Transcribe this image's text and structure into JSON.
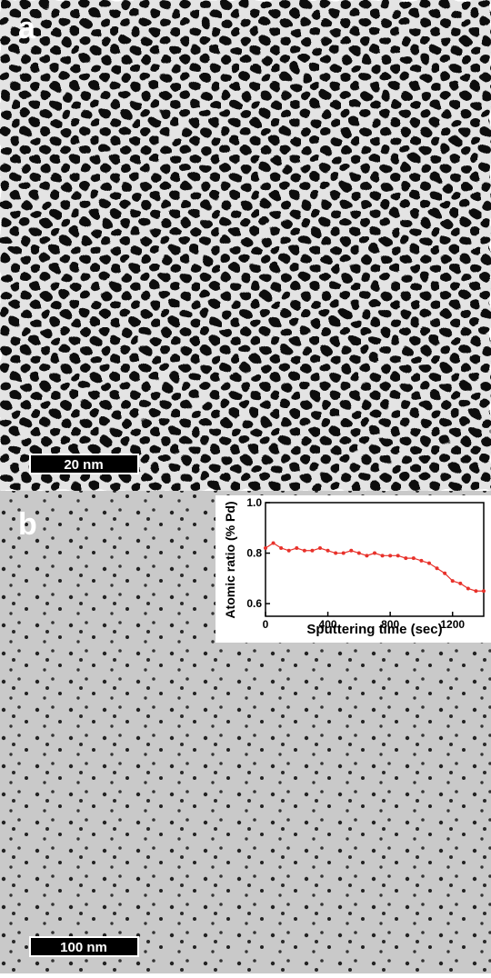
{
  "panels": [
    {
      "label": "a",
      "scale_bar": "20 nm"
    },
    {
      "label": "b",
      "scale_bar": "100 nm"
    }
  ],
  "chart_data": {
    "type": "line",
    "x_label": "Sputtering time (sec)",
    "y_label": "Atomic ratio (% Pd)",
    "x": [
      0,
      50,
      100,
      150,
      200,
      250,
      300,
      350,
      400,
      450,
      500,
      550,
      600,
      650,
      700,
      750,
      800,
      850,
      900,
      950,
      1000,
      1050,
      1100,
      1150,
      1200,
      1250,
      1300,
      1350,
      1400
    ],
    "values": [
      0.82,
      0.84,
      0.82,
      0.81,
      0.82,
      0.81,
      0.81,
      0.82,
      0.81,
      0.8,
      0.8,
      0.81,
      0.8,
      0.79,
      0.8,
      0.79,
      0.79,
      0.79,
      0.78,
      0.78,
      0.77,
      0.76,
      0.74,
      0.72,
      0.69,
      0.68,
      0.66,
      0.65,
      0.65
    ],
    "color": "#e8312a",
    "xlim": [
      0,
      1400
    ],
    "xticks": [
      0,
      400,
      800,
      1200
    ],
    "ylim": [
      0.55,
      1
    ],
    "yticks": [
      0.6,
      0.8,
      {
        "value": 1,
        "label": "1.0"
      }
    ]
  }
}
